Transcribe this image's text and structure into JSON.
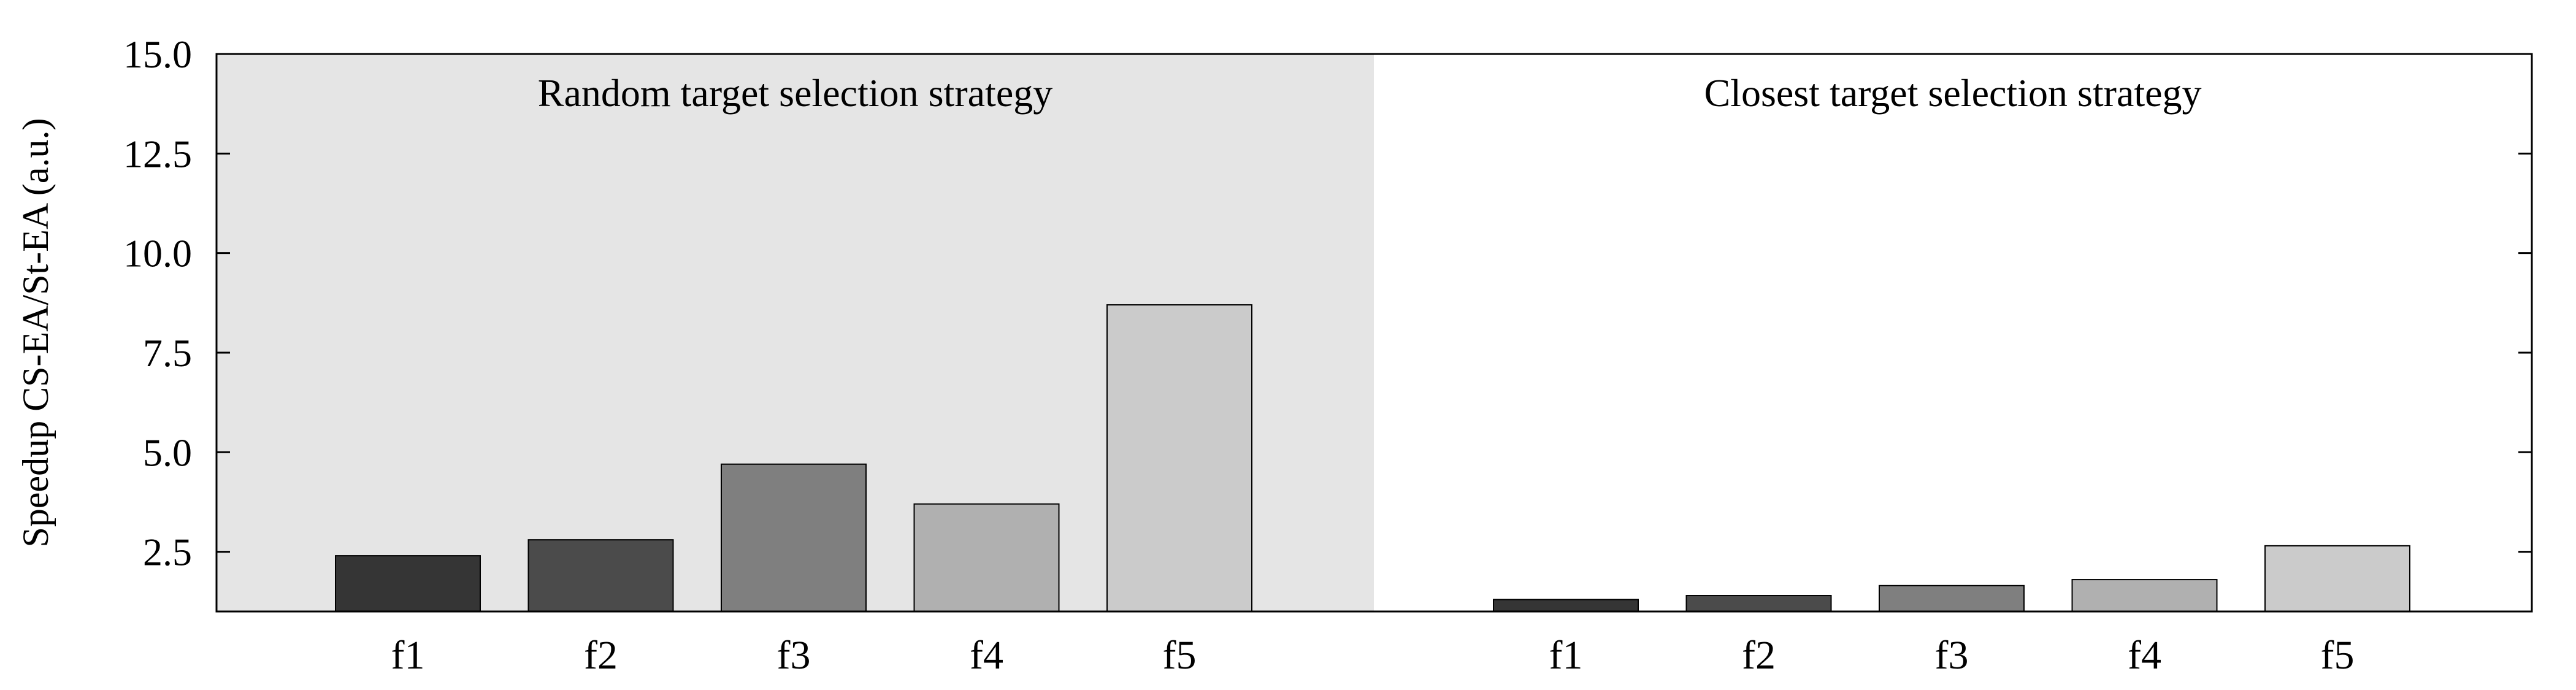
{
  "chart_data": {
    "type": "bar",
    "ylabel": "Speedup CS-EA/St-EA (a.u.)",
    "ylim": [
      1.0,
      15.0
    ],
    "yticks": [
      "2.5",
      "5.0",
      "7.5",
      "10.0",
      "12.5",
      "15.0"
    ],
    "grid": false,
    "bar_colors": [
      "#353535",
      "#4b4b4b",
      "#7f7f7f",
      "#b0b0b0",
      "#cbcbcb"
    ],
    "panels": [
      {
        "title": "Random target selection strategy",
        "background": "#e5e5e5",
        "categories": [
          "f1",
          "f2",
          "f3",
          "f4",
          "f5"
        ],
        "values": [
          2.4,
          2.8,
          4.7,
          3.7,
          8.7
        ]
      },
      {
        "title": "Closest target selection strategy",
        "background": "#ffffff",
        "categories": [
          "f1",
          "f2",
          "f3",
          "f4",
          "f5"
        ],
        "values": [
          1.3,
          1.4,
          1.65,
          1.8,
          2.65
        ]
      }
    ]
  }
}
